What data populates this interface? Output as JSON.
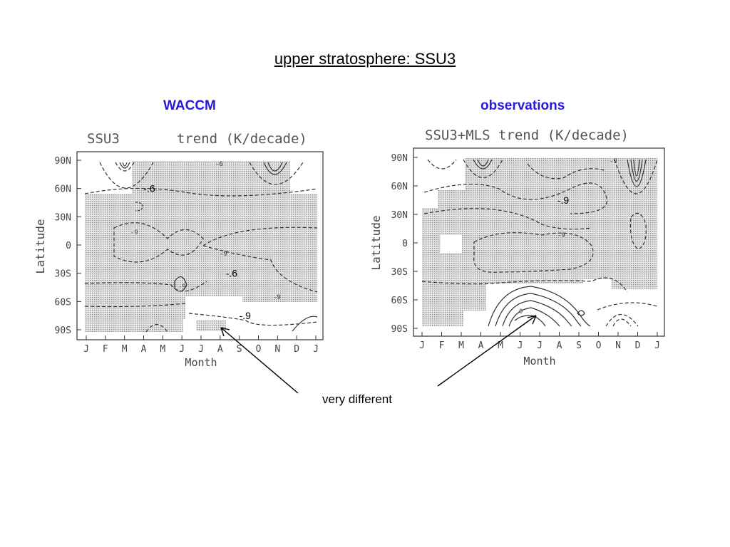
{
  "slide": {
    "title": "upper stratosphere: SSU3",
    "caption": "very different",
    "accent_color": "#2a1ad8"
  },
  "chart_data": [
    {
      "type": "heatmap",
      "heading": "WACCM",
      "title": "SSU3       trend (K/decade)",
      "xlabel": "Month",
      "ylabel": "Latitude",
      "x_ticks": [
        "J",
        "F",
        "M",
        "A",
        "M",
        "J",
        "J",
        "A",
        "S",
        "O",
        "N",
        "D",
        "J"
      ],
      "y_ticks": [
        "90N",
        "60N",
        "30N",
        "0",
        "30S",
        "60S",
        "90S"
      ],
      "ylim": [
        -90,
        90
      ],
      "grid": false,
      "annotations": [
        {
          "label": "-.6",
          "month": 3.3,
          "lat": 60
        },
        {
          "label": "-.6",
          "month": 7.6,
          "lat": -30
        },
        {
          "label": "-.9",
          "month": 8.3,
          "lat": -75
        }
      ],
      "contour_labels": [
        "-9",
        "-9",
        "-9",
        "-6",
        "-9"
      ]
    },
    {
      "type": "heatmap",
      "heading": "observations",
      "title": "SSU3+MLS trend (K/decade)",
      "xlabel": "Month",
      "ylabel": "Latitude",
      "x_ticks": [
        "J",
        "F",
        "M",
        "A",
        "M",
        "J",
        "J",
        "A",
        "S",
        "O",
        "N",
        "D",
        "J"
      ],
      "y_ticks": [
        "90N",
        "60N",
        "30N",
        "0",
        "30S",
        "60S",
        "90S"
      ],
      "ylim": [
        -90,
        90
      ],
      "grid": false,
      "annotations": [
        {
          "label": "-.9",
          "month": 7.2,
          "lat": 45
        }
      ],
      "contour_labels": [
        "-9",
        "0",
        "-9"
      ]
    }
  ]
}
